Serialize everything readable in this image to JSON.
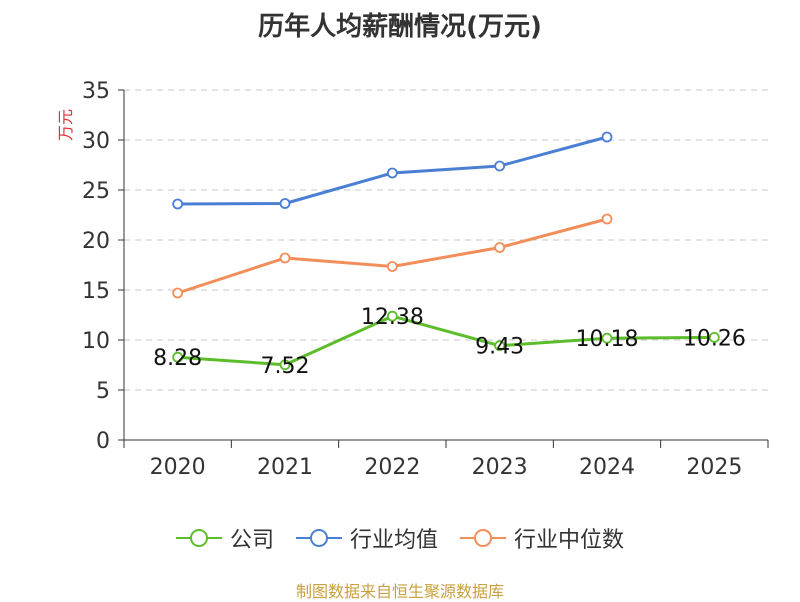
{
  "chart_data": {
    "type": "line",
    "title": "历年人均薪酬情况(万元)",
    "ylabel": "万元",
    "xlabel": "",
    "categories": [
      "2020",
      "2021",
      "2022",
      "2023",
      "2024",
      "2025"
    ],
    "ylim": [
      0,
      35
    ],
    "yticks": [
      0,
      5,
      10,
      15,
      20,
      25,
      30,
      35
    ],
    "grid": true,
    "legend_position": "bottom",
    "series": [
      {
        "name": "公司",
        "color": "#5cbd2b",
        "values": [
          8.28,
          7.52,
          12.38,
          9.43,
          10.18,
          10.26
        ],
        "labels": [
          "8.28",
          "7.52",
          "12.38",
          "9.43",
          "10.18",
          "10.26"
        ]
      },
      {
        "name": "行业均值",
        "color": "#4a7fd4",
        "values": [
          23.6,
          23.65,
          26.7,
          27.4,
          30.3,
          null
        ]
      },
      {
        "name": "行业中位数",
        "color": "#f28e5a",
        "values": [
          14.7,
          18.2,
          17.35,
          19.25,
          22.1,
          null
        ]
      }
    ]
  },
  "source": "制图数据来自恒生聚源数据库"
}
